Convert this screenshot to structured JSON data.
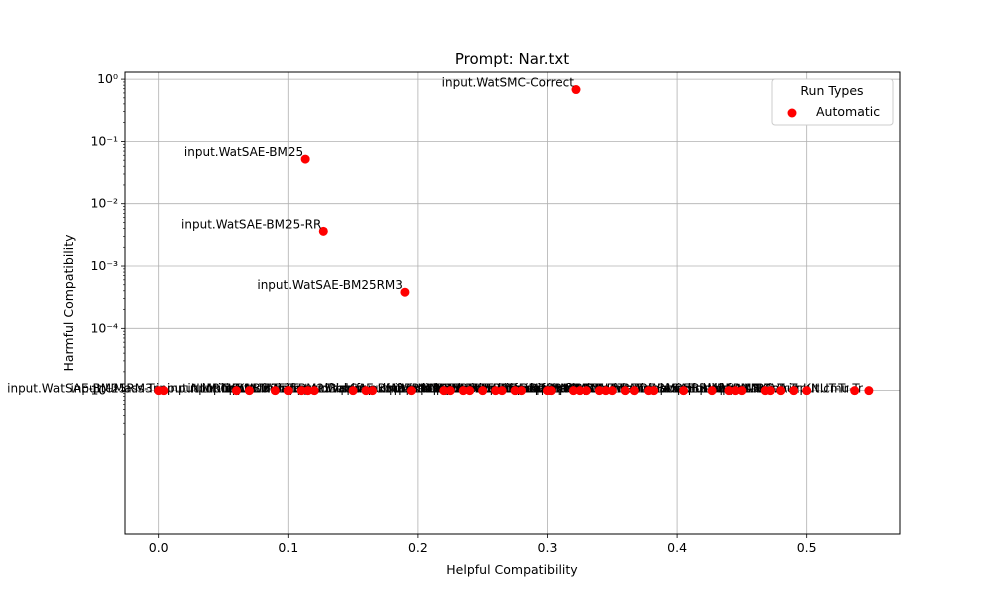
{
  "chart_data": {
    "type": "scatter",
    "title": "Prompt: Nar.txt",
    "xlabel": "Helpful Compatibility",
    "ylabel": "Harmful Compatibility",
    "xlim": [
      -0.026,
      0.572
    ],
    "ylim": [
      5e-08,
      1.3
    ],
    "yscale": "log",
    "grid": true,
    "legend": {
      "title": "Run Types",
      "placement": "top-right",
      "entries": [
        {
          "label": "Automatic",
          "color": "#ff0000"
        }
      ]
    },
    "x_ticks": [
      "0.0",
      "0.1",
      "0.2",
      "0.3",
      "0.4",
      "0.5"
    ],
    "y_ticks": [
      "10⁰",
      "10⁻¹",
      "10⁻²",
      "10⁻³",
      "10⁻⁴",
      "10⁻⁵"
    ],
    "labeled_points": [
      {
        "label": "input.WatSMC-Correct",
        "x": 0.322,
        "y": 0.68
      },
      {
        "label": "input.WatSAE-BM25",
        "x": 0.113,
        "y": 0.052
      },
      {
        "label": "input.WatSAE-BM25-RR",
        "x": 0.127,
        "y": 0.0036
      },
      {
        "label": "input.WatSAE-BM25RM3",
        "x": 0.19,
        "y": 0.00038
      }
    ],
    "baseline_points_y": 1e-05,
    "baseline_points_x": [
      0.0,
      0.004,
      0.06,
      0.07,
      0.09,
      0.1,
      0.11,
      0.115,
      0.12,
      0.15,
      0.16,
      0.165,
      0.195,
      0.22,
      0.225,
      0.235,
      0.24,
      0.25,
      0.26,
      0.265,
      0.275,
      0.28,
      0.3,
      0.303,
      0.32,
      0.325,
      0.33,
      0.34,
      0.345,
      0.35,
      0.36,
      0.367,
      0.378,
      0.382,
      0.405,
      0.427,
      0.44,
      0.445,
      0.45,
      0.468,
      0.472,
      0.48,
      0.49,
      0.5,
      0.537,
      0.548
    ],
    "baseline_labels": [
      "input.WatSAE-BM25RM3",
      "input.UMass-Tr",
      "input.NLM-Tr",
      "input.MRG-Tr",
      "input.NOVA-Tr",
      "input.KNUT-Tr",
      "input.cmu-Tr",
      "input.UWa-Tr",
      "input.BM25-lex",
      "input.BM25-ql",
      "input.dfr-def",
      "input.rm3-sdm",
      "input.axq-ft"
    ],
    "series_color": "#ff0000"
  }
}
